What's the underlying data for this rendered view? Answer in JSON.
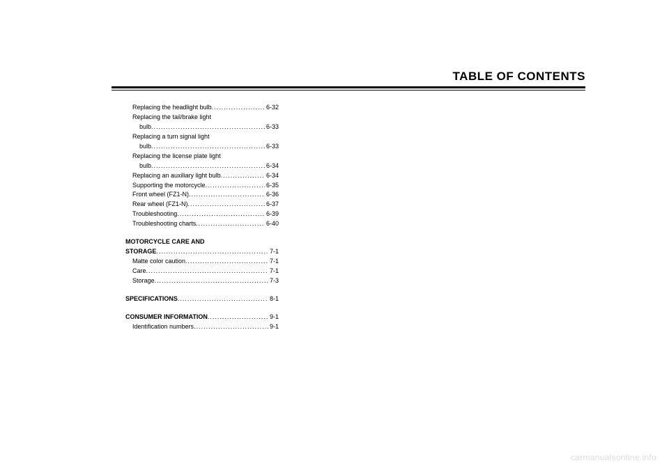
{
  "header": {
    "title": "TABLE OF CONTENTS"
  },
  "watermark": "carmanualsonline.info",
  "toc": {
    "first_section_items": [
      {
        "label": "Replacing the headlight bulb ",
        "page": "6-32",
        "indent": 1,
        "wrap": null
      },
      {
        "label": "Replacing the tail/brake light ",
        "page": "6-33",
        "indent": 1,
        "wrap": "bulb "
      },
      {
        "label": "Replacing a turn signal light ",
        "page": "6-33",
        "indent": 1,
        "wrap": "bulb "
      },
      {
        "label": "Replacing the license plate light ",
        "page": "6-34",
        "indent": 1,
        "wrap": "bulb "
      },
      {
        "label": "Replacing an auxiliary light bulb ",
        "page": "6-34",
        "indent": 1,
        "wrap": null
      },
      {
        "label": "Supporting the motorcycle ",
        "page": "6-35",
        "indent": 1,
        "wrap": null
      },
      {
        "label": "Front wheel (FZ1-N) ",
        "page": "6-36",
        "indent": 1,
        "wrap": null
      },
      {
        "label": "Rear wheel (FZ1-N) ",
        "page": "6-37",
        "indent": 1,
        "wrap": null
      },
      {
        "label": "Troubleshooting ",
        "page": "6-39",
        "indent": 1,
        "wrap": null
      },
      {
        "label": "Troubleshooting charts ",
        "page": "6-40",
        "indent": 1,
        "wrap": null
      }
    ],
    "section_care": {
      "heading_line1": "MOTORCYCLE CARE AND ",
      "heading_line2": "STORAGE",
      "heading_page": "7-1",
      "items": [
        {
          "label": "Matte color caution ",
          "page": "7-1",
          "indent": 1
        },
        {
          "label": "Care ",
          "page": "7-1",
          "indent": 1
        },
        {
          "label": "Storage ",
          "page": "7-3",
          "indent": 1
        }
      ]
    },
    "section_specs": {
      "heading": "SPECIFICATIONS ",
      "heading_page": "8-1"
    },
    "section_consumer": {
      "heading": "CONSUMER INFORMATION",
      "heading_page": "9-1",
      "items": [
        {
          "label": "Identification numbers ",
          "page": "9-1",
          "indent": 1
        }
      ]
    }
  }
}
